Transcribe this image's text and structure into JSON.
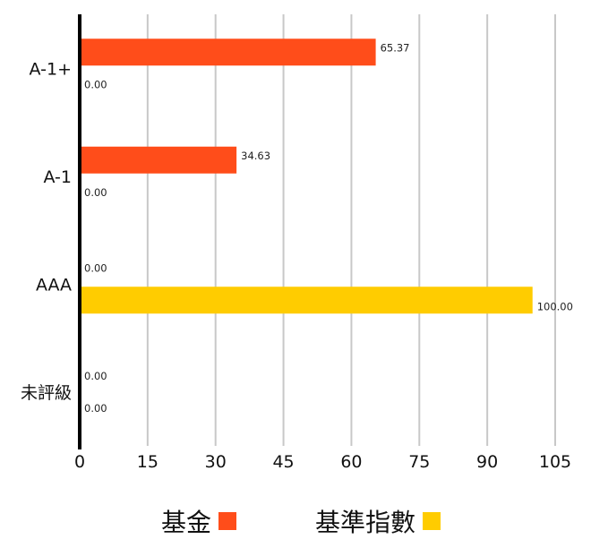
{
  "chart_data": {
    "type": "bar",
    "orientation": "horizontal",
    "categories": [
      "A-1+",
      "A-1",
      "AAA",
      "未評級"
    ],
    "series": [
      {
        "name": "基金",
        "color": "#FF4D1A",
        "values": [
          65.37,
          34.63,
          0.0,
          0.0
        ]
      },
      {
        "name": "基準指數",
        "color": "#FFCC00",
        "values": [
          0.0,
          0.0,
          100.0,
          0.0
        ]
      }
    ],
    "xlim": [
      0,
      105
    ],
    "xticks": [
      0,
      15,
      30,
      45,
      60,
      75,
      90,
      105
    ],
    "grid": true,
    "legend_position": "bottom",
    "title": "",
    "xlabel": "",
    "ylabel": ""
  }
}
